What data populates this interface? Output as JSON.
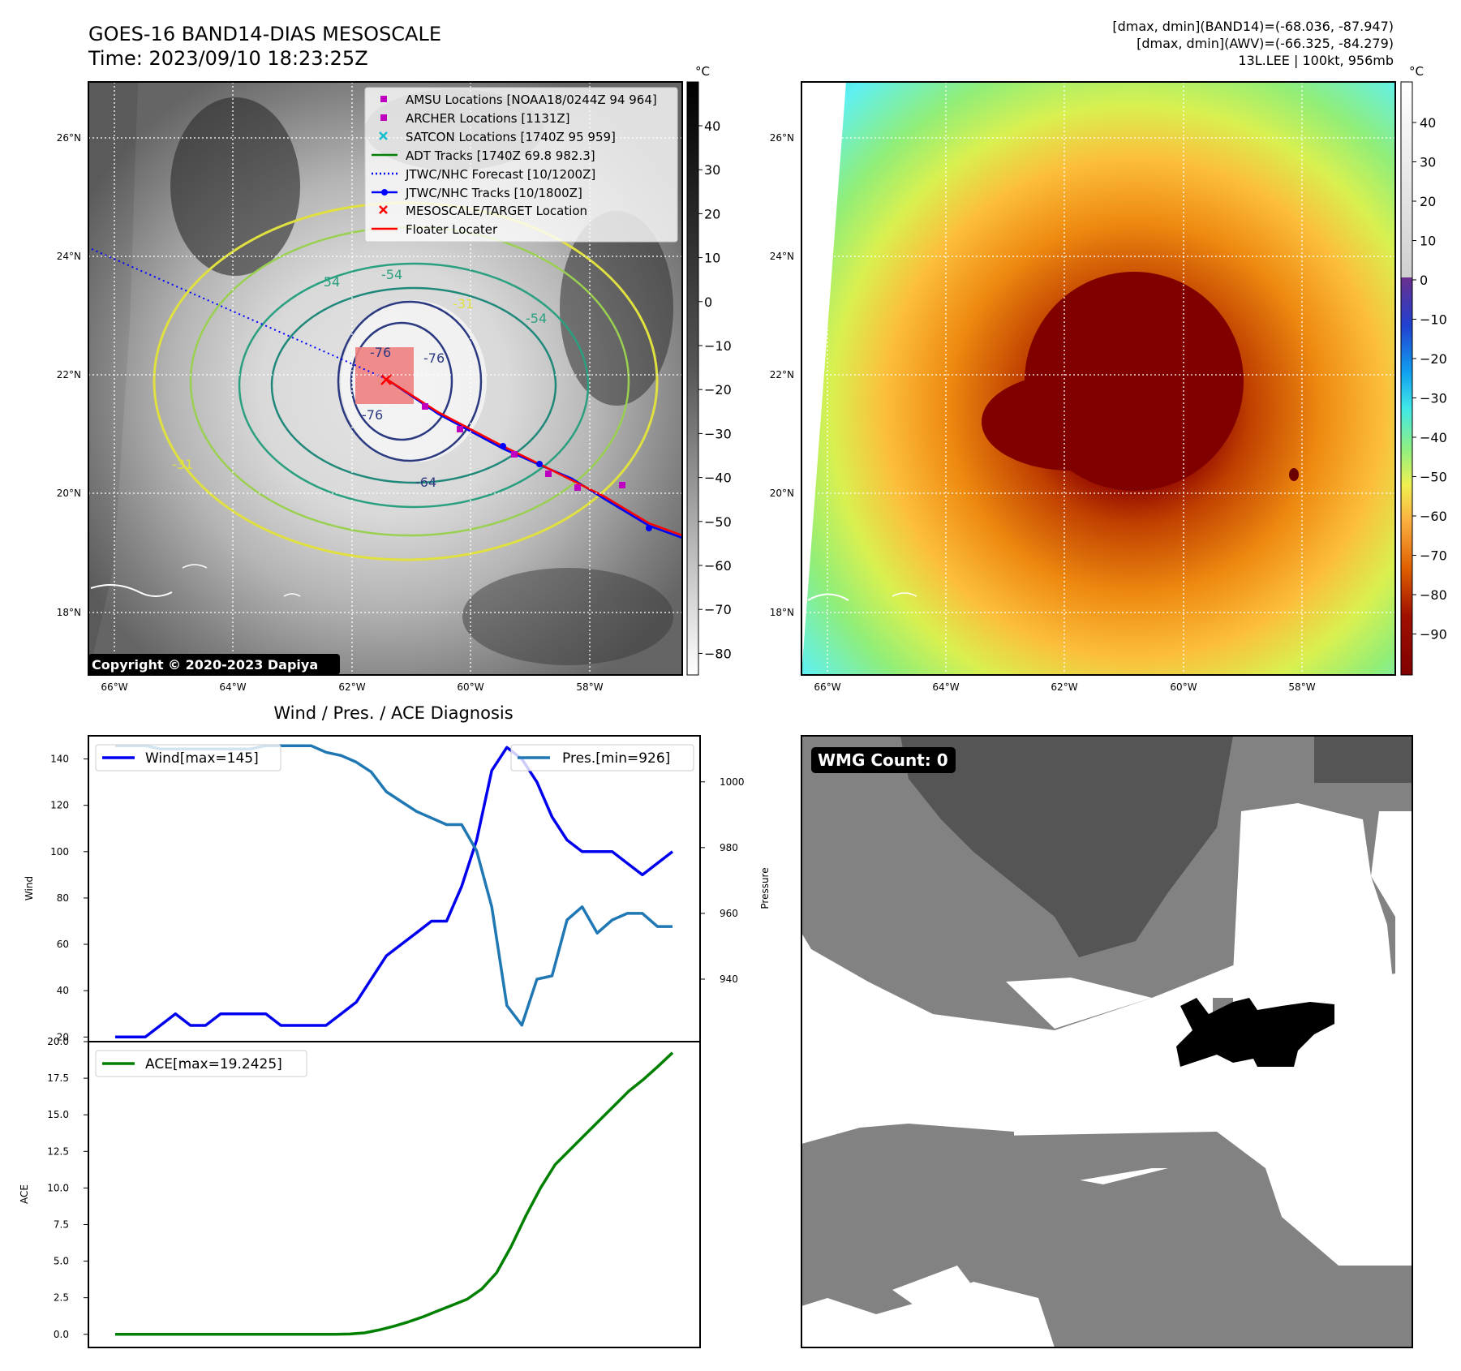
{
  "header": {
    "title_line1": "GOES-16 BAND14-DIAS MESOSCALE",
    "title_line2": "Time: 2023/09/10 18:23:25Z",
    "info_line1": "[dmax, dmin](BAND14)=(-68.036, -87.947)",
    "info_line2": "[dmax, dmin](AWV)=(-66.325, -84.279)",
    "info_line3": "13L.LEE | 100kt, 956mb"
  },
  "map_ir": {
    "colorbar_unit": "°C",
    "colorbar_ticks": [
      "40",
      "30",
      "20",
      "10",
      "0",
      "−10",
      "−20",
      "−30",
      "−40",
      "−50",
      "−60",
      "−70",
      "−80"
    ],
    "lat_labels": [
      "26°N",
      "24°N",
      "22°N",
      "20°N",
      "18°N"
    ],
    "lon_labels": [
      "66°W",
      "64°W",
      "62°W",
      "60°W",
      "58°W"
    ],
    "copyright": "Copyright © 2020-2023 Dapiya",
    "contour_labels": [
      "-54",
      "-54",
      "-76",
      "-76",
      "-76",
      "-64",
      "-31",
      "-31",
      "-54"
    ],
    "legend": [
      {
        "label": "AMSU Locations [NOAA18/0244Z 94 964]",
        "color": "#c000c0",
        "marker": "square"
      },
      {
        "label": "ARCHER Locations [1131Z]",
        "color": "#c000c0",
        "marker": "square"
      },
      {
        "label": "SATCON Locations [1740Z 95 959]",
        "color": "#17becf",
        "marker": "x"
      },
      {
        "label": "ADT Tracks [1740Z 69.8 982.3]",
        "color": "#008000",
        "marker": "line"
      },
      {
        "label": "JTWC/NHC Forecast [10/1200Z]",
        "color": "#0000ff",
        "marker": "dotted"
      },
      {
        "label": "JTWC/NHC Tracks [10/1800Z]",
        "color": "#0000ff",
        "marker": "line-dot"
      },
      {
        "label": "MESOSCALE/TARGET Location",
        "color": "#ff0000",
        "marker": "x"
      },
      {
        "label": "Floater Locater",
        "color": "#ff0000",
        "marker": "line"
      }
    ]
  },
  "map_awv": {
    "colorbar_unit": "°C",
    "colorbar_ticks": [
      "40",
      "30",
      "20",
      "10",
      "0",
      "−10",
      "−20",
      "−30",
      "−40",
      "−50",
      "−60",
      "−70",
      "−80",
      "−90"
    ],
    "lat_labels": [
      "26°N",
      "24°N",
      "22°N",
      "20°N",
      "18°N"
    ],
    "lon_labels": [
      "66°W",
      "64°W",
      "62°W",
      "60°W",
      "58°W"
    ]
  },
  "wmg": {
    "badge": "WMG Count: 0"
  },
  "chart_data": [
    {
      "type": "line",
      "title": "Wind / Pres. / ACE Diagnosis",
      "ylabel": "Wind",
      "ylabel_right": "Pressure",
      "ylim": [
        18,
        150
      ],
      "ylim_right": [
        921,
        1014
      ],
      "yticks": [
        20,
        40,
        60,
        80,
        100,
        120,
        140
      ],
      "yticks_right": [
        940,
        960,
        980,
        1000
      ],
      "series": [
        {
          "name": "Wind[max=145]",
          "color": "#0000ee",
          "axis": "left",
          "values": [
            20,
            20,
            20,
            25,
            30,
            25,
            25,
            30,
            30,
            30,
            30,
            25,
            25,
            25,
            25,
            30,
            35,
            45,
            55,
            60,
            65,
            70,
            70,
            85,
            105,
            135,
            145,
            140,
            130,
            115,
            105,
            100,
            100,
            100,
            95,
            90,
            95,
            100
          ]
        },
        {
          "name": "Pres.[min=926]",
          "color": "#1f77b4",
          "axis": "right",
          "values": [
            1011,
            1011,
            1011,
            1010,
            1010,
            1010,
            1010,
            1010,
            1010,
            1010,
            1011,
            1011,
            1011,
            1011,
            1009,
            1008,
            1006,
            1003,
            997,
            994,
            991,
            989,
            987,
            987,
            979,
            962,
            932,
            926,
            940,
            941,
            958,
            962,
            954,
            958,
            960,
            960,
            956,
            956
          ]
        }
      ]
    },
    {
      "type": "line",
      "ylabel": "ACE",
      "ylim": [
        -0.9,
        20.0
      ],
      "yticks": [
        0.0,
        2.5,
        5.0,
        7.5,
        10.0,
        12.5,
        15.0,
        17.5,
        20.0
      ],
      "ytick_labels": [
        "0.0",
        "2.5",
        "5.0",
        "7.5",
        "10.0",
        "12.5",
        "15.0",
        "17.5",
        "20.0"
      ],
      "series": [
        {
          "name": "ACE[max=19.2425]",
          "color": "#008000",
          "values": [
            0,
            0,
            0,
            0,
            0,
            0,
            0,
            0,
            0,
            0,
            0,
            0,
            0,
            0,
            0,
            0,
            0.02,
            0.1,
            0.3,
            0.55,
            0.85,
            1.2,
            1.6,
            2.0,
            2.4,
            3.1,
            4.2,
            6.0,
            8.1,
            10.0,
            11.6,
            12.6,
            13.6,
            14.6,
            15.6,
            16.6,
            17.4,
            18.3,
            19.24
          ]
        }
      ]
    }
  ]
}
